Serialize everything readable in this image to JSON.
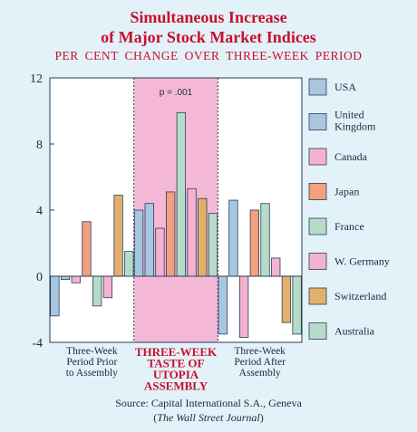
{
  "chart_data": {
    "type": "bar",
    "title": "Simultaneous Increase",
    "title_line2": "of Major Stock Market Indices",
    "subtitle": "PER CENT CHANGE OVER THREE-WEEK PERIOD",
    "ylim": [
      -4,
      12
    ],
    "yticks": [
      "12",
      "8",
      "4",
      "0",
      "-4"
    ],
    "ytick_values": [
      12,
      8,
      4,
      0,
      -4
    ],
    "categories": [
      [
        "Three-Week",
        "Period Prior",
        "to Assembly"
      ],
      [
        "THREE-WEEK",
        "TASTE OF",
        "UTOPIA",
        "ASSEMBLY"
      ],
      [
        "Three-Week",
        "Period After",
        "Assembly"
      ]
    ],
    "highlight_category": 1,
    "highlight_color": "#f4b8d6",
    "annotation": "p = .001",
    "series": [
      {
        "name": "USA",
        "color": "#a7c7e0",
        "values": [
          -2.4,
          4.0,
          -3.5
        ]
      },
      {
        "name": "United Kingdom",
        "name_lines": [
          "United",
          "Kingdom"
        ],
        "color": "#a7c7e0",
        "values": [
          -0.2,
          4.4,
          4.6
        ]
      },
      {
        "name": "Canada",
        "color": "#f3b3d0",
        "values": [
          -0.4,
          2.9,
          -3.7
        ]
      },
      {
        "name": "Japan",
        "color": "#f2a07f",
        "values": [
          3.3,
          5.1,
          4.0
        ]
      },
      {
        "name": "France",
        "color": "#b6dcc8",
        "values": [
          -1.8,
          9.9,
          4.4
        ]
      },
      {
        "name": "W. Germany",
        "color": "#f3b3d0",
        "values": [
          -1.3,
          5.3,
          1.1
        ]
      },
      {
        "name": "Switzerland",
        "color": "#e3b06c",
        "values": [
          4.9,
          4.7,
          -2.8
        ]
      },
      {
        "name": "Australia",
        "color": "#b6dcc8",
        "values": [
          1.5,
          3.8,
          -3.5
        ]
      }
    ],
    "source": "Source: Capital International S.A., Geneva",
    "source_journal": "The Wall Street Journal",
    "grid": false,
    "legend_position": "right"
  }
}
